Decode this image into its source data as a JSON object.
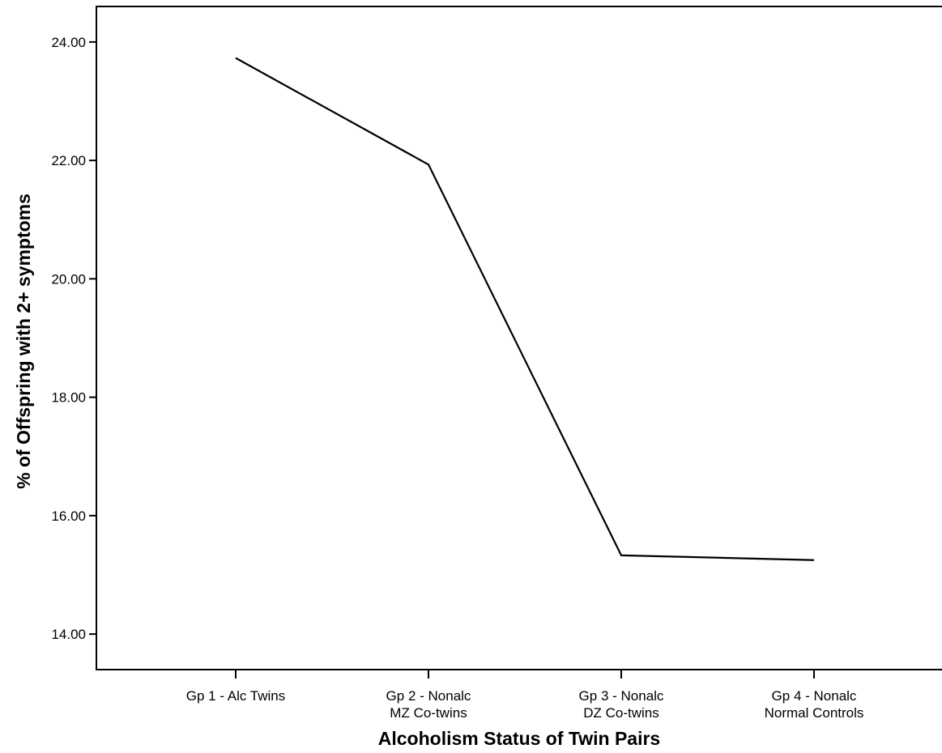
{
  "chart_data": {
    "type": "line",
    "title": "",
    "xlabel": "Alcoholism Status of Twin Pairs",
    "ylabel": "% of Offspring with 2+ symptoms",
    "categories": [
      [
        "Gp 1 - Alc Twins"
      ],
      [
        "Gp 2 - Nonalc",
        "MZ Co-twins"
      ],
      [
        "Gp 3 - Nonalc",
        "DZ Co-twins"
      ],
      [
        "Gp 4 - Nonalc",
        "Normal Controls"
      ]
    ],
    "series": [
      {
        "values": [
          23.73,
          21.93,
          15.33,
          15.25
        ]
      }
    ],
    "yticks": [
      "14.00",
      "16.00",
      "18.00",
      "20.00",
      "22.00",
      "24.00"
    ],
    "ylim": [
      13.4,
      24.6
    ],
    "grid": false,
    "line_color": "#000000"
  }
}
